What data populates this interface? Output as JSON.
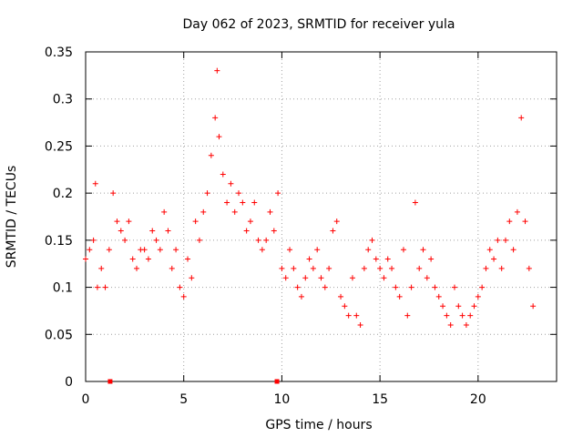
{
  "chart_data": {
    "type": "scatter",
    "title": "Day 062 of 2023, SRMTID for receiver yula",
    "xlabel": "GPS time / hours",
    "ylabel": "SRMTID / TECUs",
    "xlim": [
      0,
      24
    ],
    "ylim": [
      0,
      0.35
    ],
    "xticks": [
      0,
      5,
      10,
      15,
      20
    ],
    "xtick_labels": [
      "0",
      "5",
      "10",
      "15",
      "20"
    ],
    "yticks": [
      0,
      0.05,
      0.1,
      0.15,
      0.2,
      0.25,
      0.3,
      0.35
    ],
    "ytick_labels": [
      "0",
      "0.05",
      "0.1",
      "0.15",
      "0.2",
      "0.25",
      "0.3",
      "0.35"
    ],
    "grid": true,
    "marker": "+",
    "color": "#ff0000",
    "series": [
      {
        "name": "SRMTID",
        "x": [
          0.0,
          0.2,
          0.4,
          0.5,
          0.6,
          0.8,
          1.0,
          1.2,
          1.4,
          1.6,
          1.8,
          2.0,
          2.2,
          2.4,
          2.6,
          2.8,
          3.0,
          3.2,
          3.4,
          3.6,
          3.8,
          4.0,
          4.2,
          4.4,
          4.6,
          4.8,
          5.0,
          5.2,
          5.4,
          5.6,
          5.8,
          6.0,
          6.2,
          6.4,
          6.6,
          6.7,
          6.8,
          7.0,
          7.2,
          7.4,
          7.6,
          7.8,
          8.0,
          8.2,
          8.4,
          8.6,
          8.8,
          9.0,
          9.2,
          9.4,
          9.6,
          9.8,
          10.0,
          10.2,
          10.4,
          10.6,
          10.8,
          11.0,
          11.2,
          11.4,
          11.6,
          11.8,
          12.0,
          12.2,
          12.4,
          12.6,
          12.8,
          13.0,
          13.2,
          13.4,
          13.6,
          13.8,
          14.0,
          14.2,
          14.4,
          14.6,
          14.8,
          15.0,
          15.2,
          15.4,
          15.6,
          15.8,
          16.0,
          16.2,
          16.4,
          16.6,
          16.8,
          17.0,
          17.2,
          17.4,
          17.6,
          17.8,
          18.0,
          18.2,
          18.4,
          18.6,
          18.8,
          19.0,
          19.2,
          19.4,
          19.6,
          19.8,
          20.0,
          20.2,
          20.4,
          20.6,
          20.8,
          21.0,
          21.2,
          21.4,
          21.6,
          21.8,
          22.0,
          22.2,
          22.4,
          22.6,
          22.8
        ],
        "y": [
          0.13,
          0.14,
          0.15,
          0.21,
          0.1,
          0.12,
          0.1,
          0.14,
          0.2,
          0.17,
          0.16,
          0.15,
          0.17,
          0.13,
          0.12,
          0.14,
          0.14,
          0.13,
          0.16,
          0.15,
          0.14,
          0.18,
          0.16,
          0.12,
          0.14,
          0.1,
          0.09,
          0.13,
          0.11,
          0.17,
          0.15,
          0.18,
          0.2,
          0.24,
          0.28,
          0.33,
          0.26,
          0.22,
          0.19,
          0.21,
          0.18,
          0.2,
          0.19,
          0.16,
          0.17,
          0.19,
          0.15,
          0.14,
          0.15,
          0.18,
          0.16,
          0.2,
          0.12,
          0.11,
          0.14,
          0.12,
          0.1,
          0.09,
          0.11,
          0.13,
          0.12,
          0.14,
          0.11,
          0.1,
          0.12,
          0.16,
          0.17,
          0.09,
          0.08,
          0.07,
          0.11,
          0.07,
          0.06,
          0.12,
          0.14,
          0.15,
          0.13,
          0.12,
          0.11,
          0.13,
          0.12,
          0.1,
          0.09,
          0.14,
          0.07,
          0.1,
          0.19,
          0.12,
          0.14,
          0.11,
          0.13,
          0.1,
          0.09,
          0.08,
          0.07,
          0.06,
          0.1,
          0.08,
          0.07,
          0.06,
          0.07,
          0.08,
          0.09,
          0.1,
          0.12,
          0.14,
          0.13,
          0.15,
          0.12,
          0.15,
          0.17,
          0.14,
          0.18,
          0.28,
          0.17,
          0.12,
          0.08
        ]
      }
    ],
    "gap_markers_x": [
      1.25,
      9.75
    ]
  }
}
